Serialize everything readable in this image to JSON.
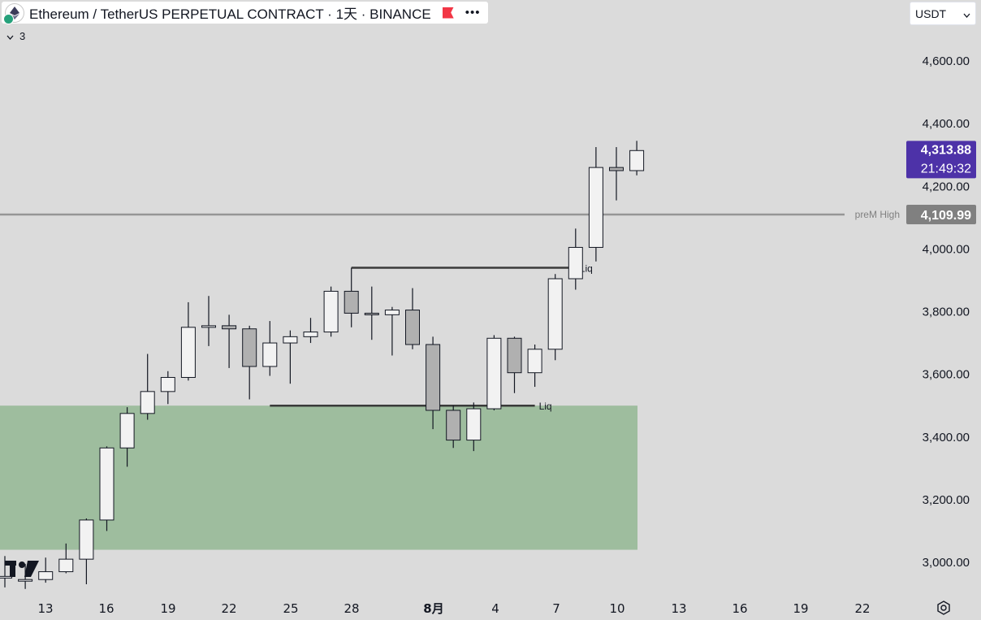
{
  "header": {
    "symbol_title": "Ethereum / TetherUS PERPETUAL CONTRACT · 1天 · BINANCE",
    "menu_icon": "more-dots-icon",
    "flag_icon": "flag-icon",
    "flag_color": "#f23645"
  },
  "legend": {
    "collapsed_count": "3"
  },
  "currency_select": {
    "value": "USDT"
  },
  "chart_data": {
    "type": "candlestick",
    "x_ticks": [
      "13",
      "16",
      "19",
      "22",
      "25",
      "28",
      "8月",
      "4",
      "7",
      "10",
      "13",
      "16",
      "19",
      "22"
    ],
    "y_ticks": [
      "3,000.00",
      "3,200.00",
      "3,400.00",
      "3,600.00",
      "3,800.00",
      "4,000.00",
      "4,200.00",
      "4,400.00",
      "4,600.00"
    ],
    "ylim": [
      2920,
      4800
    ],
    "colors": {
      "up": "#f2f2f2",
      "down": "#b0b0b0",
      "wick": "#131722",
      "zone": "#9ebd9e",
      "level": "#969696",
      "current_price_bg": "#4d32a8",
      "level_label_bg": "#808080"
    },
    "candles": [
      {
        "o": 2950,
        "h": 3020,
        "l": 2920,
        "c": 2955
      },
      {
        "o": 2940,
        "h": 2995,
        "l": 2915,
        "c": 2945
      },
      {
        "o": 2945,
        "h": 3015,
        "l": 2935,
        "c": 2970
      },
      {
        "o": 2970,
        "h": 3060,
        "l": 2965,
        "c": 3010
      },
      {
        "o": 3010,
        "h": 3140,
        "l": 2930,
        "c": 3135
      },
      {
        "o": 3135,
        "h": 3370,
        "l": 3100,
        "c": 3365
      },
      {
        "o": 3365,
        "h": 3495,
        "l": 3305,
        "c": 3475
      },
      {
        "o": 3475,
        "h": 3665,
        "l": 3455,
        "c": 3545
      },
      {
        "o": 3545,
        "h": 3610,
        "l": 3505,
        "c": 3590
      },
      {
        "o": 3590,
        "h": 3830,
        "l": 3580,
        "c": 3750
      },
      {
        "o": 3750,
        "h": 3850,
        "l": 3690,
        "c": 3755
      },
      {
        "o": 3755,
        "h": 3790,
        "l": 3620,
        "c": 3745
      },
      {
        "o": 3745,
        "h": 3755,
        "l": 3520,
        "c": 3625
      },
      {
        "o": 3625,
        "h": 3770,
        "l": 3595,
        "c": 3700
      },
      {
        "o": 3700,
        "h": 3740,
        "l": 3570,
        "c": 3720
      },
      {
        "o": 3720,
        "h": 3780,
        "l": 3700,
        "c": 3735
      },
      {
        "o": 3735,
        "h": 3880,
        "l": 3720,
        "c": 3865
      },
      {
        "o": 3865,
        "h": 3940,
        "l": 3750,
        "c": 3795
      },
      {
        "o": 3795,
        "h": 3880,
        "l": 3710,
        "c": 3790
      },
      {
        "o": 3790,
        "h": 3815,
        "l": 3660,
        "c": 3805
      },
      {
        "o": 3805,
        "h": 3875,
        "l": 3680,
        "c": 3695
      },
      {
        "o": 3695,
        "h": 3720,
        "l": 3425,
        "c": 3485
      },
      {
        "o": 3485,
        "h": 3500,
        "l": 3365,
        "c": 3390
      },
      {
        "o": 3390,
        "h": 3510,
        "l": 3355,
        "c": 3490
      },
      {
        "o": 3490,
        "h": 3725,
        "l": 3485,
        "c": 3715
      },
      {
        "o": 3715,
        "h": 3720,
        "l": 3540,
        "c": 3605
      },
      {
        "o": 3605,
        "h": 3695,
        "l": 3560,
        "c": 3680
      },
      {
        "o": 3680,
        "h": 3920,
        "l": 3645,
        "c": 3905
      },
      {
        "o": 3905,
        "h": 4065,
        "l": 3870,
        "c": 4005
      },
      {
        "o": 4005,
        "h": 4325,
        "l": 3960,
        "c": 4260
      },
      {
        "o": 4260,
        "h": 4325,
        "l": 4155,
        "c": 4250
      },
      {
        "o": 4250,
        "h": 4345,
        "l": 4235,
        "c": 4314
      }
    ],
    "demand_zone": {
      "from": 3040,
      "to": 3500
    },
    "liq_levels": [
      {
        "label": "Liq",
        "value": 3500,
        "from_candle": 13,
        "to_candle": 26
      },
      {
        "label": "Liq",
        "value": 3940,
        "from_candle": 17,
        "to_candle": 28
      }
    ],
    "horizontal_level": {
      "name": "preM  High",
      "value": 4109.99,
      "label": "4,109.99"
    },
    "current_price": {
      "value": 4313.88,
      "label": "4,313.88",
      "countdown": "21:49:32"
    }
  }
}
